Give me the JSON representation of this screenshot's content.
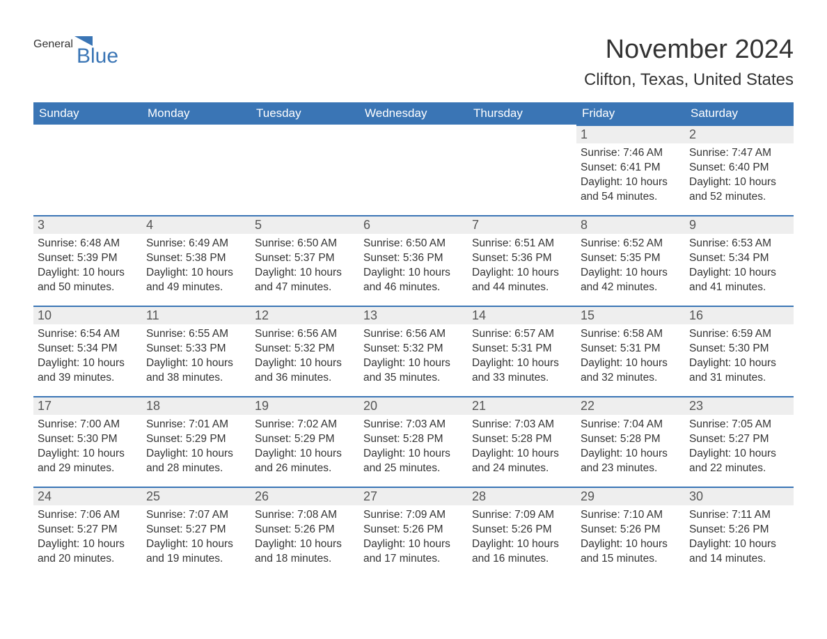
{
  "brand": {
    "general": "General",
    "blue": "Blue",
    "flag_color": "#3a75b5"
  },
  "title": "November 2024",
  "location": "Clifton, Texas, United States",
  "colors": {
    "header_bg": "#3a75b5",
    "header_text": "#ffffff",
    "day_border": "#3a75b5",
    "day_num_bg": "#eeeeee",
    "body_text": "#333333",
    "page_bg": "#ffffff"
  },
  "typography": {
    "title_fontsize": 38,
    "location_fontsize": 24,
    "header_fontsize": 17,
    "day_num_fontsize": 18,
    "body_fontsize": 15.5,
    "logo_fontsize": 30
  },
  "layout": {
    "columns": 7,
    "rows": 5,
    "first_day_column": 5
  },
  "weekdays": [
    "Sunday",
    "Monday",
    "Tuesday",
    "Wednesday",
    "Thursday",
    "Friday",
    "Saturday"
  ],
  "days": [
    {
      "n": 1,
      "sunrise": "7:46 AM",
      "sunset": "6:41 PM",
      "daylight": "10 hours and 54 minutes."
    },
    {
      "n": 2,
      "sunrise": "7:47 AM",
      "sunset": "6:40 PM",
      "daylight": "10 hours and 52 minutes."
    },
    {
      "n": 3,
      "sunrise": "6:48 AM",
      "sunset": "5:39 PM",
      "daylight": "10 hours and 50 minutes."
    },
    {
      "n": 4,
      "sunrise": "6:49 AM",
      "sunset": "5:38 PM",
      "daylight": "10 hours and 49 minutes."
    },
    {
      "n": 5,
      "sunrise": "6:50 AM",
      "sunset": "5:37 PM",
      "daylight": "10 hours and 47 minutes."
    },
    {
      "n": 6,
      "sunrise": "6:50 AM",
      "sunset": "5:36 PM",
      "daylight": "10 hours and 46 minutes."
    },
    {
      "n": 7,
      "sunrise": "6:51 AM",
      "sunset": "5:36 PM",
      "daylight": "10 hours and 44 minutes."
    },
    {
      "n": 8,
      "sunrise": "6:52 AM",
      "sunset": "5:35 PM",
      "daylight": "10 hours and 42 minutes."
    },
    {
      "n": 9,
      "sunrise": "6:53 AM",
      "sunset": "5:34 PM",
      "daylight": "10 hours and 41 minutes."
    },
    {
      "n": 10,
      "sunrise": "6:54 AM",
      "sunset": "5:34 PM",
      "daylight": "10 hours and 39 minutes."
    },
    {
      "n": 11,
      "sunrise": "6:55 AM",
      "sunset": "5:33 PM",
      "daylight": "10 hours and 38 minutes."
    },
    {
      "n": 12,
      "sunrise": "6:56 AM",
      "sunset": "5:32 PM",
      "daylight": "10 hours and 36 minutes."
    },
    {
      "n": 13,
      "sunrise": "6:56 AM",
      "sunset": "5:32 PM",
      "daylight": "10 hours and 35 minutes."
    },
    {
      "n": 14,
      "sunrise": "6:57 AM",
      "sunset": "5:31 PM",
      "daylight": "10 hours and 33 minutes."
    },
    {
      "n": 15,
      "sunrise": "6:58 AM",
      "sunset": "5:31 PM",
      "daylight": "10 hours and 32 minutes."
    },
    {
      "n": 16,
      "sunrise": "6:59 AM",
      "sunset": "5:30 PM",
      "daylight": "10 hours and 31 minutes."
    },
    {
      "n": 17,
      "sunrise": "7:00 AM",
      "sunset": "5:30 PM",
      "daylight": "10 hours and 29 minutes."
    },
    {
      "n": 18,
      "sunrise": "7:01 AM",
      "sunset": "5:29 PM",
      "daylight": "10 hours and 28 minutes."
    },
    {
      "n": 19,
      "sunrise": "7:02 AM",
      "sunset": "5:29 PM",
      "daylight": "10 hours and 26 minutes."
    },
    {
      "n": 20,
      "sunrise": "7:03 AM",
      "sunset": "5:28 PM",
      "daylight": "10 hours and 25 minutes."
    },
    {
      "n": 21,
      "sunrise": "7:03 AM",
      "sunset": "5:28 PM",
      "daylight": "10 hours and 24 minutes."
    },
    {
      "n": 22,
      "sunrise": "7:04 AM",
      "sunset": "5:28 PM",
      "daylight": "10 hours and 23 minutes."
    },
    {
      "n": 23,
      "sunrise": "7:05 AM",
      "sunset": "5:27 PM",
      "daylight": "10 hours and 22 minutes."
    },
    {
      "n": 24,
      "sunrise": "7:06 AM",
      "sunset": "5:27 PM",
      "daylight": "10 hours and 20 minutes."
    },
    {
      "n": 25,
      "sunrise": "7:07 AM",
      "sunset": "5:27 PM",
      "daylight": "10 hours and 19 minutes."
    },
    {
      "n": 26,
      "sunrise": "7:08 AM",
      "sunset": "5:26 PM",
      "daylight": "10 hours and 18 minutes."
    },
    {
      "n": 27,
      "sunrise": "7:09 AM",
      "sunset": "5:26 PM",
      "daylight": "10 hours and 17 minutes."
    },
    {
      "n": 28,
      "sunrise": "7:09 AM",
      "sunset": "5:26 PM",
      "daylight": "10 hours and 16 minutes."
    },
    {
      "n": 29,
      "sunrise": "7:10 AM",
      "sunset": "5:26 PM",
      "daylight": "10 hours and 15 minutes."
    },
    {
      "n": 30,
      "sunrise": "7:11 AM",
      "sunset": "5:26 PM",
      "daylight": "10 hours and 14 minutes."
    }
  ],
  "labels": {
    "sunrise": "Sunrise:",
    "sunset": "Sunset:",
    "daylight": "Daylight:"
  }
}
